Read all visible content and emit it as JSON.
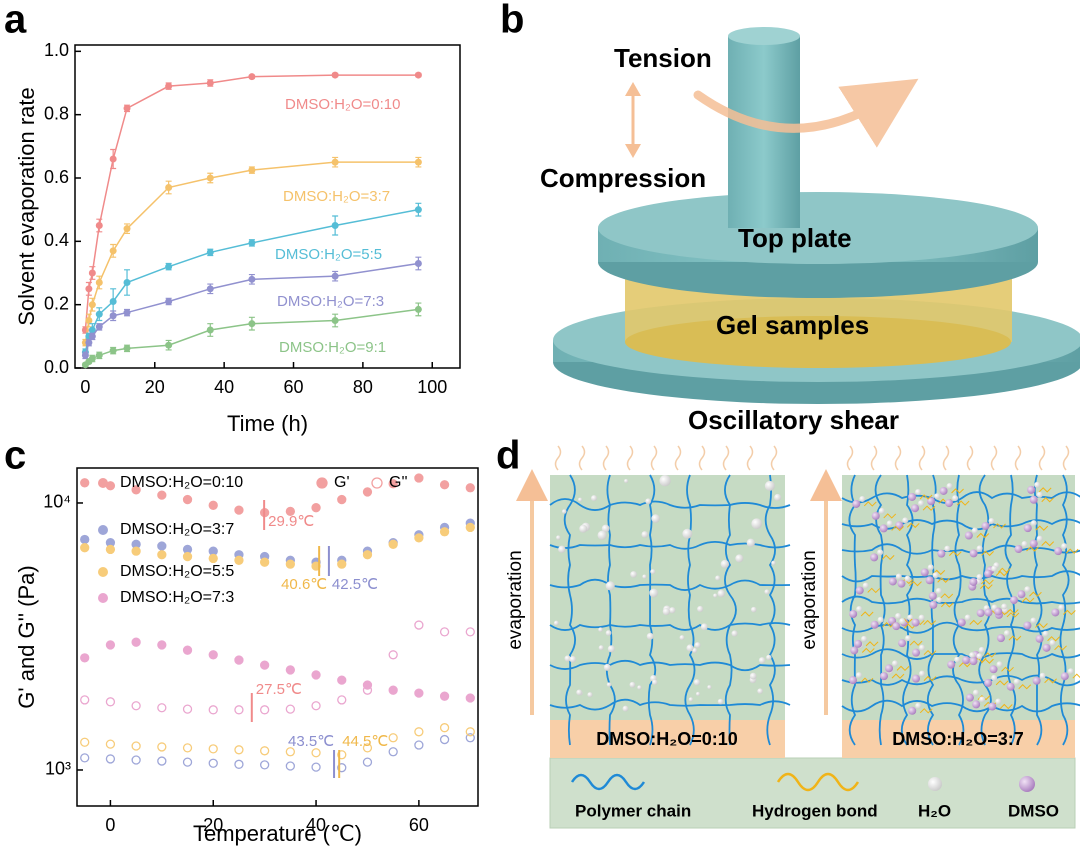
{
  "panel_labels": [
    "a",
    "b",
    "c",
    "d"
  ],
  "chart_data": [
    {
      "type": "line",
      "xlabel": "Time (h)",
      "ylabel": "Solvent evaporation rate",
      "x": [
        0,
        1,
        2,
        4,
        8,
        12,
        24,
        36,
        48,
        72,
        96
      ],
      "xlim": [
        -3,
        108
      ],
      "ylim": [
        0,
        1.02
      ],
      "xticks": [
        0,
        20,
        40,
        60,
        80,
        100
      ],
      "yticks": [
        {
          "value": 0,
          "label": "0.0"
        },
        0.2,
        0.4,
        0.6,
        0.8,
        {
          "value": 1,
          "label": "1.0"
        }
      ],
      "series": [
        {
          "name": "DMSO:H₂O=0:10",
          "color": "#f08a8a",
          "values": [
            0.12,
            0.25,
            0.3,
            0.45,
            0.66,
            0.82,
            0.89,
            0.9,
            0.92,
            0.925,
            0.925
          ],
          "errors": [
            0.01,
            0.02,
            0.02,
            0.02,
            0.03,
            0.01,
            0.01,
            0.01,
            0.005,
            0.005,
            0.005
          ]
        },
        {
          "name": "DMSO:H₂O=3:7",
          "color": "#f5c26b",
          "values": [
            0.08,
            0.15,
            0.2,
            0.27,
            0.37,
            0.44,
            0.57,
            0.6,
            0.625,
            0.65,
            0.65
          ],
          "errors": [
            0.01,
            0.02,
            0.02,
            0.02,
            0.02,
            0.015,
            0.02,
            0.015,
            0.01,
            0.015,
            0.015
          ]
        },
        {
          "name": "DMSO:H₂O=5:5",
          "color": "#55bdd6",
          "values": [
            0.05,
            0.1,
            0.12,
            0.17,
            0.21,
            0.27,
            0.32,
            0.365,
            0.395,
            0.45,
            0.5
          ],
          "errors": [
            0.01,
            0.01,
            0.02,
            0.02,
            0.04,
            0.04,
            0.01,
            0.01,
            0.01,
            0.03,
            0.02
          ]
        },
        {
          "name": "DMSO:H₂O=7:3",
          "color": "#9191cf",
          "values": [
            0.04,
            0.08,
            0.1,
            0.13,
            0.165,
            0.175,
            0.21,
            0.25,
            0.28,
            0.29,
            0.33
          ],
          "errors": [
            0.01,
            0.01,
            0.01,
            0.01,
            0.015,
            0.01,
            0.01,
            0.015,
            0.015,
            0.015,
            0.02
          ]
        },
        {
          "name": "DMSO:H₂O=9:1",
          "color": "#8cc488",
          "values": [
            0.01,
            0.02,
            0.03,
            0.04,
            0.055,
            0.062,
            0.072,
            0.12,
            0.14,
            0.15,
            0.185
          ],
          "errors": [
            0.005,
            0.005,
            0.01,
            0.01,
            0.01,
            0.01,
            0.015,
            0.02,
            0.02,
            0.02,
            0.02
          ]
        }
      ]
    },
    {
      "type": "scatter",
      "xlabel": "Temperature (℃)",
      "ylabel": "G' and G'' (Pa)",
      "yscale": "log",
      "x": [
        -5,
        0,
        5,
        10,
        15,
        20,
        25,
        30,
        35,
        40,
        45,
        50,
        55,
        60,
        65,
        70
      ],
      "xlim": [
        -6.5,
        71.5
      ],
      "ylim": [
        733,
        13520
      ],
      "xticks": [
        0,
        20,
        40,
        60
      ],
      "yticks": [
        {
          "value": 1000,
          "label": "10³"
        },
        {
          "value": 10000,
          "label": "10⁴"
        }
      ],
      "moduli": [
        "G'",
        "G''"
      ],
      "series": [
        {
          "name": "DMSO:H₂O=0:10",
          "modulus": "G'",
          "color": "#f2a0a0",
          "values": [
            11900,
            11600,
            11200,
            10700,
            10300,
            9800,
            9400,
            9200,
            9300,
            9600,
            10300,
            11000,
            11800,
            12400,
            11700,
            11400
          ]
        },
        {
          "name": "DMSO:H₂O=3:7",
          "modulus": "G'",
          "color": "#9ea6d8",
          "values": [
            7300,
            7100,
            7000,
            6900,
            6700,
            6600,
            6400,
            6300,
            6100,
            6000,
            6100,
            6600,
            7100,
            7600,
            8100,
            8400
          ]
        },
        {
          "name": "DMSO:H₂O=3:7",
          "modulus": "G''",
          "color": "#9ea6d8",
          "values": [
            1110,
            1100,
            1090,
            1080,
            1070,
            1060,
            1050,
            1045,
            1035,
            1025,
            1020,
            1070,
            1170,
            1240,
            1300,
            1320
          ]
        },
        {
          "name": "DMSO:H₂O=5:5",
          "modulus": "G'",
          "color": "#f7cc7a",
          "values": [
            6800,
            6700,
            6600,
            6400,
            6300,
            6200,
            6100,
            6000,
            5900,
            5800,
            5900,
            6400,
            7000,
            7400,
            7800,
            8100
          ]
        },
        {
          "name": "DMSO:H₂O=5:5",
          "modulus": "G''",
          "color": "#f7cc7a",
          "values": [
            1270,
            1250,
            1230,
            1220,
            1210,
            1200,
            1190,
            1180,
            1170,
            1160,
            1140,
            1210,
            1320,
            1390,
            1440,
            1390
          ]
        },
        {
          "name": "DMSO:H₂O=7:3",
          "modulus": "G'",
          "color": "#eaa6cf",
          "values": [
            2630,
            2940,
            3010,
            2940,
            2810,
            2700,
            2580,
            2470,
            2370,
            2270,
            2170,
            2080,
            1990,
            1940,
            1890,
            1860
          ]
        },
        {
          "name": "DMSO:H₂O=7:3",
          "modulus": "G''",
          "color": "#eaa6cf",
          "values": [
            1830,
            1800,
            1740,
            1710,
            1690,
            1680,
            1680,
            1680,
            1690,
            1740,
            1830,
            1990,
            2700,
            3490,
            3290,
            3290
          ]
        }
      ],
      "annotations": [
        {
          "x": 29.9,
          "label": "29.9℃",
          "color": "#f08a8a"
        },
        {
          "x": 40.6,
          "label": "40.6℃",
          "color": "#f0b84a"
        },
        {
          "x": 42.5,
          "label": "42.5℃",
          "color": "#8c8fcf"
        },
        {
          "x": 27.5,
          "label": "27.5℃",
          "color": "#f08a8a"
        },
        {
          "x": 43.5,
          "label": "43.5℃",
          "color": "#8c8fcf"
        },
        {
          "x": 44.5,
          "label": "44.5℃",
          "color": "#f0b84a"
        }
      ]
    }
  ],
  "diagram_b": {
    "tension": "Tension",
    "compression": "Compression",
    "top_plate": "Top plate",
    "gel": "Gel samples",
    "shear": "Oscillatory shear"
  },
  "diagram_d": {
    "evaporation": [
      "evaporation",
      "evaporation"
    ],
    "samples": [
      "DMSO:H₂O=0:10",
      "DMSO:H₂O=3:7"
    ],
    "legend": [
      "Polymer chain",
      "Hydrogen bond",
      "H₂O",
      "DMSO"
    ]
  }
}
